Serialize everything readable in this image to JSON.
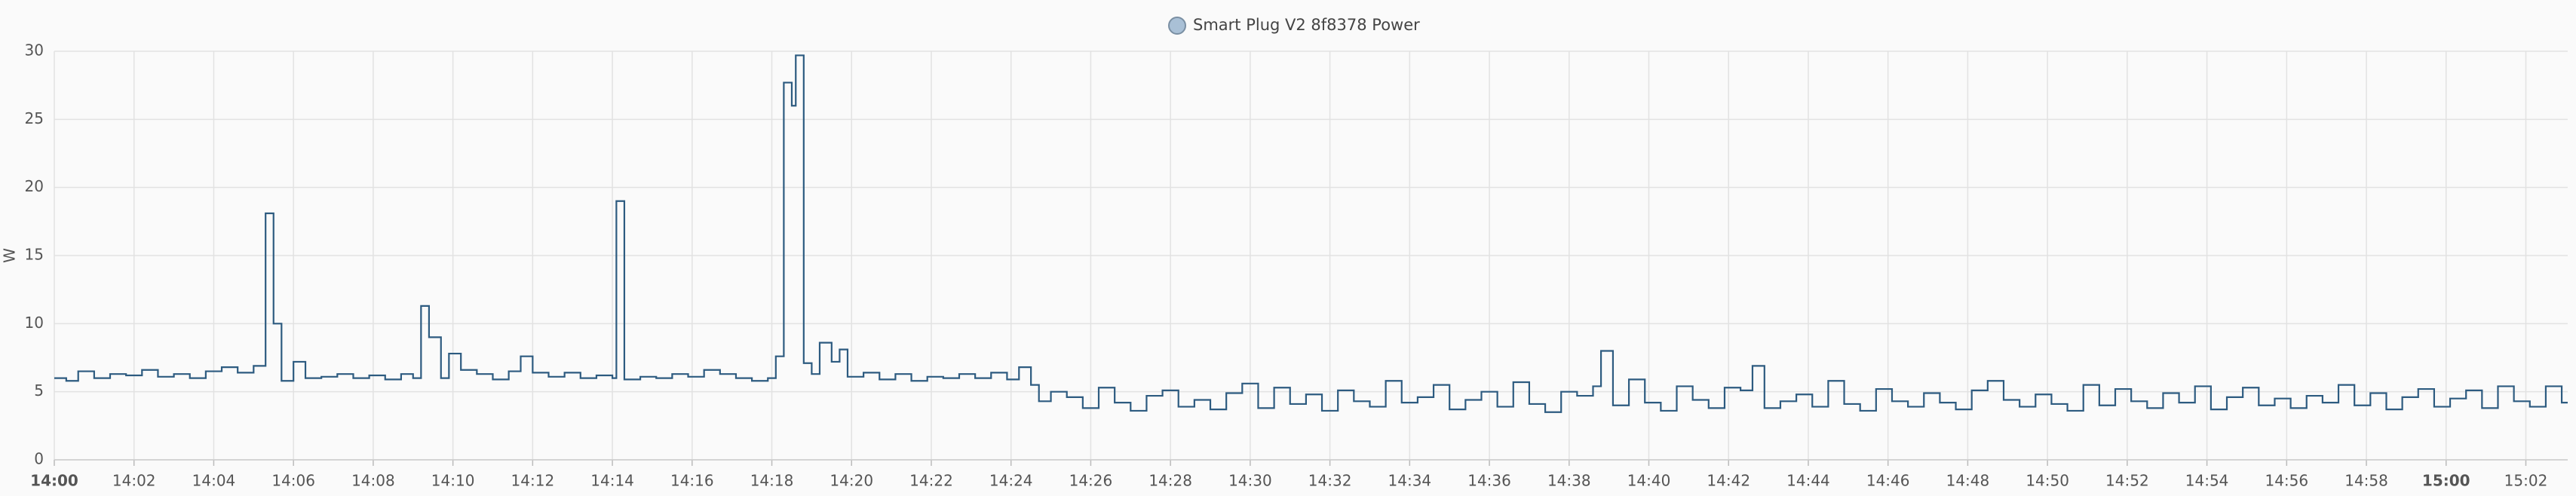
{
  "chart_data": {
    "type": "step-line",
    "legend": "Smart Plug V2 8f8378 Power",
    "ylabel": "W",
    "ylim": [
      0,
      30
    ],
    "yticks": [
      0,
      5,
      10,
      15,
      20,
      25,
      30
    ],
    "xlim": [
      0,
      63.05
    ],
    "xticks": [
      {
        "value": 0,
        "label": "14:00"
      },
      {
        "value": 2,
        "label": "14:02"
      },
      {
        "value": 4,
        "label": "14:04"
      },
      {
        "value": 6,
        "label": "14:06"
      },
      {
        "value": 8,
        "label": "14:08"
      },
      {
        "value": 10,
        "label": "14:10"
      },
      {
        "value": 12,
        "label": "14:12"
      },
      {
        "value": 14,
        "label": "14:14"
      },
      {
        "value": 16,
        "label": "14:16"
      },
      {
        "value": 18,
        "label": "14:18"
      },
      {
        "value": 20,
        "label": "14:20"
      },
      {
        "value": 22,
        "label": "14:22"
      },
      {
        "value": 24,
        "label": "14:24"
      },
      {
        "value": 26,
        "label": "14:26"
      },
      {
        "value": 28,
        "label": "14:28"
      },
      {
        "value": 30,
        "label": "14:30"
      },
      {
        "value": 32,
        "label": "14:32"
      },
      {
        "value": 34,
        "label": "14:34"
      },
      {
        "value": 36,
        "label": "14:36"
      },
      {
        "value": 38,
        "label": "14:38"
      },
      {
        "value": 40,
        "label": "14:40"
      },
      {
        "value": 42,
        "label": "14:42"
      },
      {
        "value": 44,
        "label": "14:44"
      },
      {
        "value": 46,
        "label": "14:46"
      },
      {
        "value": 48,
        "label": "14:48"
      },
      {
        "value": 50,
        "label": "14:50"
      },
      {
        "value": 52,
        "label": "14:52"
      },
      {
        "value": 54,
        "label": "14:54"
      },
      {
        "value": 56,
        "label": "14:56"
      },
      {
        "value": 58,
        "label": "14:58"
      },
      {
        "value": 60,
        "label": "15:00"
      },
      {
        "value": 62,
        "label": "15:02"
      }
    ],
    "grid": true,
    "color": "#2d5b80",
    "legend_color": "#a9c0d6",
    "x": [
      0,
      0.3,
      0.6,
      1,
      1.4,
      1.8,
      2.2,
      2.6,
      3,
      3.4,
      3.8,
      4.2,
      4.6,
      5.0,
      5.3,
      5.5,
      5.7,
      6.0,
      6.3,
      6.7,
      7.1,
      7.5,
      7.9,
      8.3,
      8.7,
      9.0,
      9.2,
      9.4,
      9.7,
      9.9,
      10.2,
      10.6,
      11.0,
      11.4,
      11.7,
      12.0,
      12.4,
      12.8,
      13.2,
      13.6,
      14.0,
      14.1,
      14.3,
      14.7,
      15.1,
      15.5,
      15.9,
      16.3,
      16.7,
      17.1,
      17.5,
      17.9,
      18.1,
      18.3,
      18.5,
      18.6,
      18.8,
      19.0,
      19.2,
      19.5,
      19.7,
      19.9,
      20.3,
      20.7,
      21.1,
      21.5,
      21.9,
      22.3,
      22.7,
      23.1,
      23.5,
      23.9,
      24.2,
      24.5,
      24.7,
      25.0,
      25.4,
      25.8,
      26.2,
      26.6,
      27.0,
      27.4,
      27.8,
      28.2,
      28.6,
      29.0,
      29.4,
      29.8,
      30.2,
      30.6,
      31.0,
      31.4,
      31.8,
      32.2,
      32.6,
      33.0,
      33.4,
      33.8,
      34.2,
      34.6,
      35.0,
      35.4,
      35.8,
      36.2,
      36.6,
      37.0,
      37.4,
      37.8,
      38.2,
      38.6,
      38.8,
      39.1,
      39.5,
      39.9,
      40.3,
      40.7,
      41.1,
      41.5,
      41.9,
      42.3,
      42.6,
      42.9,
      43.3,
      43.7,
      44.1,
      44.5,
      44.9,
      45.3,
      45.7,
      46.1,
      46.5,
      46.9,
      47.3,
      47.7,
      48.1,
      48.5,
      48.9,
      49.3,
      49.7,
      50.1,
      50.5,
      50.9,
      51.3,
      51.7,
      52.1,
      52.5,
      52.9,
      53.3,
      53.7,
      54.1,
      54.5,
      54.9,
      55.3,
      55.7,
      56.1,
      56.5,
      56.9,
      57.3,
      57.7,
      58.1,
      58.5,
      58.9,
      59.3,
      59.7,
      60.1,
      60.5,
      60.9,
      61.3,
      61.7,
      62.1,
      62.5,
      62.9
    ],
    "values": [
      6,
      5.8,
      6.5,
      6,
      6.3,
      6.2,
      6.6,
      6.1,
      6.3,
      6.0,
      6.5,
      6.8,
      6.4,
      6.9,
      18.1,
      10,
      5.8,
      7.2,
      6.0,
      6.1,
      6.3,
      6.0,
      6.2,
      5.9,
      6.3,
      6.0,
      11.3,
      9.0,
      6.0,
      7.8,
      6.6,
      6.3,
      5.9,
      6.5,
      7.6,
      6.4,
      6.1,
      6.4,
      6.0,
      6.2,
      6.0,
      19.0,
      5.9,
      6.1,
      6.0,
      6.3,
      6.1,
      6.6,
      6.3,
      6.0,
      5.8,
      6.0,
      7.6,
      27.7,
      26.0,
      29.7,
      7.1,
      6.3,
      8.6,
      7.2,
      8.1,
      6.1,
      6.4,
      5.9,
      6.3,
      5.8,
      6.1,
      6.0,
      6.3,
      6.0,
      6.4,
      5.9,
      6.8,
      5.5,
      4.3,
      5.0,
      4.6,
      3.8,
      5.3,
      4.2,
      3.6,
      4.7,
      5.1,
      3.9,
      4.4,
      3.7,
      4.9,
      5.6,
      3.8,
      5.3,
      4.1,
      4.8,
      3.6,
      5.1,
      4.3,
      3.9,
      5.8,
      4.2,
      4.6,
      5.5,
      3.7,
      4.4,
      5.0,
      3.9,
      5.7,
      4.1,
      3.5,
      5.0,
      4.7,
      5.4,
      8.0,
      4.0,
      5.9,
      4.2,
      3.6,
      5.4,
      4.4,
      3.8,
      5.3,
      5.1,
      6.9,
      3.8,
      4.3,
      4.8,
      3.9,
      5.8,
      4.1,
      3.6,
      5.2,
      4.3,
      3.9,
      4.9,
      4.2,
      3.7,
      5.1,
      5.8,
      4.4,
      3.9,
      4.8,
      4.1,
      3.6,
      5.5,
      4.0,
      5.2,
      4.3,
      3.8,
      4.9,
      4.2,
      5.4,
      3.7,
      4.6,
      5.3,
      4.0,
      4.5,
      3.8,
      4.7,
      4.2,
      5.5,
      4.0,
      4.9,
      3.7,
      4.6,
      5.2,
      3.9,
      4.5,
      5.1,
      3.8,
      5.4,
      4.3,
      3.9,
      5.4,
      4.2
    ]
  }
}
